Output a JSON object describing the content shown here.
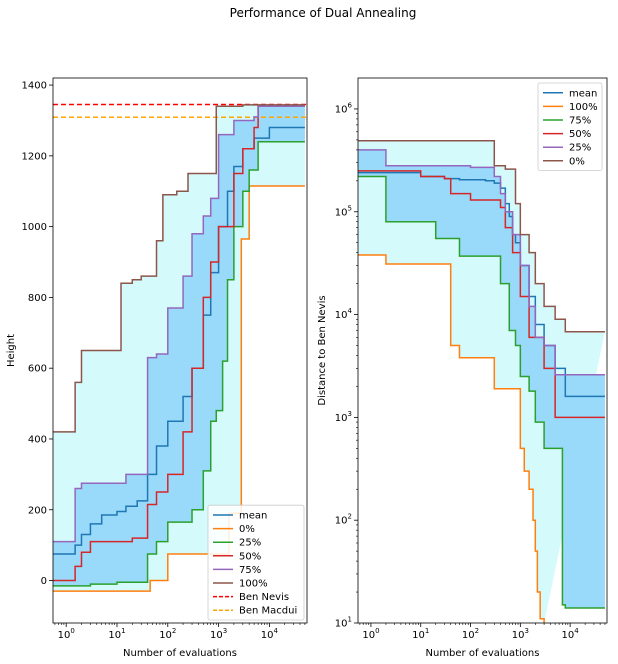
{
  "figure_title": "Performance of Dual Annealing",
  "chart_data": [
    {
      "type": "line",
      "panel": "left",
      "xscale": "log",
      "yscale": "linear",
      "xlabel": "Number of evaluations",
      "ylabel": "Height",
      "xlim": [
        0.55,
        55000
      ],
      "ylim": [
        -120,
        1420
      ],
      "xticks": [
        1,
        10,
        100,
        1000,
        10000
      ],
      "xtick_labels": [
        "10^0",
        "10^1",
        "10^2",
        "10^3",
        "10^4"
      ],
      "yticks": [
        0,
        200,
        400,
        600,
        800,
        1000,
        1200,
        1400
      ],
      "ytick_labels": [
        "0",
        "200",
        "400",
        "600",
        "800",
        "1000",
        "1200",
        "1400"
      ],
      "legend_position": "lower-right",
      "fills": [
        {
          "between": [
            "0%",
            "100%"
          ],
          "color": "#d4fafc"
        },
        {
          "between": [
            "25%",
            "75%"
          ],
          "color": "#99d9fa"
        }
      ],
      "series": [
        {
          "name": "mean",
          "color": "#1f77b4",
          "points": [
            [
              0.55,
              75
            ],
            [
              1,
              75
            ],
            [
              1.5,
              100
            ],
            [
              2,
              130
            ],
            [
              3,
              160
            ],
            [
              5,
              185
            ],
            [
              10,
              195
            ],
            [
              15,
              210
            ],
            [
              25,
              225
            ],
            [
              40,
              300
            ],
            [
              60,
              380
            ],
            [
              100,
              450
            ],
            [
              200,
              520
            ],
            [
              300,
              600
            ],
            [
              500,
              750
            ],
            [
              700,
              870
            ],
            [
              1000,
              1000
            ],
            [
              1500,
              1100
            ],
            [
              2000,
              1170
            ],
            [
              3000,
              1220
            ],
            [
              5000,
              1250
            ],
            [
              10000,
              1280
            ],
            [
              50000,
              1280
            ]
          ]
        },
        {
          "name": "0%",
          "color": "#ff7f0e",
          "points": [
            [
              0.55,
              -30
            ],
            [
              30,
              -30
            ],
            [
              45,
              0
            ],
            [
              100,
              75
            ],
            [
              500,
              75
            ],
            [
              1500,
              75
            ],
            [
              1600,
              190
            ],
            [
              2200,
              190
            ],
            [
              2800,
              965
            ],
            [
              4000,
              1115
            ],
            [
              50000,
              1115
            ]
          ]
        },
        {
          "name": "25%",
          "color": "#2ca02c",
          "points": [
            [
              0.55,
              -15
            ],
            [
              3,
              -10
            ],
            [
              10,
              -5
            ],
            [
              30,
              -5
            ],
            [
              40,
              75
            ],
            [
              60,
              110
            ],
            [
              100,
              165
            ],
            [
              300,
              200
            ],
            [
              500,
              310
            ],
            [
              700,
              450
            ],
            [
              900,
              480
            ],
            [
              1200,
              620
            ],
            [
              1500,
              850
            ],
            [
              2000,
              1000
            ],
            [
              3000,
              1100
            ],
            [
              4000,
              1160
            ],
            [
              6000,
              1240
            ],
            [
              50000,
              1240
            ]
          ]
        },
        {
          "name": "50%",
          "color": "#d62728",
          "points": [
            [
              0.55,
              0
            ],
            [
              1,
              0
            ],
            [
              1.5,
              40
            ],
            [
              2,
              80
            ],
            [
              3,
              110
            ],
            [
              10,
              110
            ],
            [
              20,
              120
            ],
            [
              40,
              215
            ],
            [
              60,
              250
            ],
            [
              100,
              300
            ],
            [
              200,
              420
            ],
            [
              300,
              600
            ],
            [
              500,
              800
            ],
            [
              700,
              900
            ],
            [
              1000,
              1000
            ],
            [
              2000,
              1150
            ],
            [
              3000,
              1220
            ],
            [
              5000,
              1280
            ],
            [
              6000,
              1340
            ],
            [
              50000,
              1340
            ]
          ]
        },
        {
          "name": "75%",
          "color": "#9467bd",
          "points": [
            [
              0.55,
              110
            ],
            [
              1,
              110
            ],
            [
              1.5,
              260
            ],
            [
              2,
              275
            ],
            [
              3,
              275
            ],
            [
              10,
              275
            ],
            [
              15,
              300
            ],
            [
              30,
              300
            ],
            [
              40,
              630
            ],
            [
              60,
              640
            ],
            [
              100,
              770
            ],
            [
              200,
              860
            ],
            [
              300,
              980
            ],
            [
              500,
              1030
            ],
            [
              700,
              1080
            ],
            [
              1000,
              1260
            ],
            [
              2000,
              1300
            ],
            [
              5000,
              1310
            ],
            [
              6000,
              1340
            ],
            [
              50000,
              1340
            ]
          ]
        },
        {
          "name": "100%",
          "color": "#8c564b",
          "points": [
            [
              0.55,
              420
            ],
            [
              1,
              420
            ],
            [
              1.5,
              560
            ],
            [
              2,
              650
            ],
            [
              10,
              650
            ],
            [
              12,
              840
            ],
            [
              20,
              850
            ],
            [
              30,
              860
            ],
            [
              60,
              960
            ],
            [
              80,
              1090
            ],
            [
              150,
              1100
            ],
            [
              250,
              1150
            ],
            [
              700,
              1150
            ],
            [
              900,
              1340
            ],
            [
              3000,
              1344
            ],
            [
              50000,
              1344
            ]
          ]
        }
      ],
      "reference_lines": [
        {
          "name": "Ben Nevis",
          "y": 1345,
          "color": "#ff0000",
          "style": "dashed"
        },
        {
          "name": "Ben Macdui",
          "y": 1309,
          "color": "#ffa500",
          "style": "dashed"
        }
      ]
    },
    {
      "type": "line",
      "panel": "right",
      "xscale": "log",
      "yscale": "log",
      "xlabel": "Number of evaluations",
      "ylabel": "Distance to Ben Nevis",
      "xlim": [
        0.55,
        55000
      ],
      "ylim": [
        10,
        2000000
      ],
      "xticks": [
        1,
        10,
        100,
        1000,
        10000
      ],
      "xtick_labels": [
        "10^0",
        "10^1",
        "10^2",
        "10^3",
        "10^4"
      ],
      "yticks": [
        10,
        100,
        1000,
        10000,
        100000,
        1000000
      ],
      "ytick_labels": [
        "10^1",
        "10^2",
        "10^3",
        "10^4",
        "10^5",
        "10^6"
      ],
      "legend_position": "top-right",
      "fills": [
        {
          "between": [
            "100%",
            "0%"
          ],
          "color": "#d4fafc"
        },
        {
          "between": [
            "75%",
            "25%"
          ],
          "color": "#99d9fa"
        }
      ],
      "series": [
        {
          "name": "mean",
          "color": "#1f77b4",
          "points": [
            [
              0.55,
              240000
            ],
            [
              10,
              220000
            ],
            [
              30,
              210000
            ],
            [
              60,
              205000
            ],
            [
              100,
              205000
            ],
            [
              200,
              200000
            ],
            [
              300,
              190000
            ],
            [
              400,
              170000
            ],
            [
              500,
              120000
            ],
            [
              600,
              90000
            ],
            [
              700,
              60000
            ],
            [
              800,
              50000
            ],
            [
              1000,
              30000
            ],
            [
              1500,
              15000
            ],
            [
              2000,
              8000
            ],
            [
              3000,
              5000
            ],
            [
              5000,
              3000
            ],
            [
              8000,
              1600
            ],
            [
              50000,
              1600
            ]
          ]
        },
        {
          "name": "100%",
          "color": "#ff7f0e",
          "points": [
            [
              0.55,
              38000
            ],
            [
              1,
              38000
            ],
            [
              2,
              31000
            ],
            [
              30,
              31000
            ],
            [
              40,
              5000
            ],
            [
              60,
              3800
            ],
            [
              200,
              3800
            ],
            [
              300,
              1900
            ],
            [
              800,
              1900
            ],
            [
              1000,
              500
            ],
            [
              1200,
              300
            ],
            [
              1500,
              200
            ],
            [
              1800,
              100
            ],
            [
              2000,
              50
            ],
            [
              2200,
              20
            ],
            [
              2500,
              11
            ],
            [
              3000,
              10
            ]
          ]
        },
        {
          "name": "75%",
          "color": "#2ca02c",
          "points": [
            [
              0.55,
              220000
            ],
            [
              1,
              220000
            ],
            [
              2,
              80000
            ],
            [
              10,
              80000
            ],
            [
              20,
              55000
            ],
            [
              60,
              37000
            ],
            [
              100,
              37000
            ],
            [
              300,
              37000
            ],
            [
              400,
              20000
            ],
            [
              600,
              7000
            ],
            [
              800,
              5000
            ],
            [
              1000,
              2500
            ],
            [
              1500,
              1800
            ],
            [
              2000,
              900
            ],
            [
              3000,
              500
            ],
            [
              5000,
              500
            ],
            [
              7000,
              15
            ],
            [
              8000,
              14
            ],
            [
              50000,
              14
            ]
          ]
        },
        {
          "name": "50%",
          "color": "#d62728",
          "points": [
            [
              0.55,
              250000
            ],
            [
              10,
              220000
            ],
            [
              30,
              210000
            ],
            [
              40,
              150000
            ],
            [
              100,
              130000
            ],
            [
              300,
              130000
            ],
            [
              400,
              110000
            ],
            [
              500,
              70000
            ],
            [
              700,
              40000
            ],
            [
              1000,
              15000
            ],
            [
              1500,
              6000
            ],
            [
              3000,
              3000
            ],
            [
              5000,
              1000
            ],
            [
              50000,
              1000
            ]
          ]
        },
        {
          "name": "25%",
          "color": "#9467bd",
          "points": [
            [
              0.55,
              400000
            ],
            [
              1,
              400000
            ],
            [
              2,
              280000
            ],
            [
              30,
              280000
            ],
            [
              100,
              270000
            ],
            [
              300,
              220000
            ],
            [
              400,
              150000
            ],
            [
              500,
              100000
            ],
            [
              700,
              60000
            ],
            [
              1000,
              30000
            ],
            [
              1500,
              12000
            ],
            [
              2000,
              6000
            ],
            [
              3000,
              5000
            ],
            [
              5000,
              2600
            ],
            [
              50000,
              2600
            ]
          ]
        },
        {
          "name": "0%",
          "color": "#8c564b",
          "points": [
            [
              0.55,
              490000
            ],
            [
              30,
              490000
            ],
            [
              200,
              490000
            ],
            [
              300,
              280000
            ],
            [
              500,
              260000
            ],
            [
              800,
              120000
            ],
            [
              1000,
              60000
            ],
            [
              1500,
              40000
            ],
            [
              2000,
              20000
            ],
            [
              3000,
              12000
            ],
            [
              5000,
              9000
            ],
            [
              8000,
              6800
            ],
            [
              50000,
              6800
            ]
          ]
        }
      ],
      "reference_lines": []
    }
  ]
}
